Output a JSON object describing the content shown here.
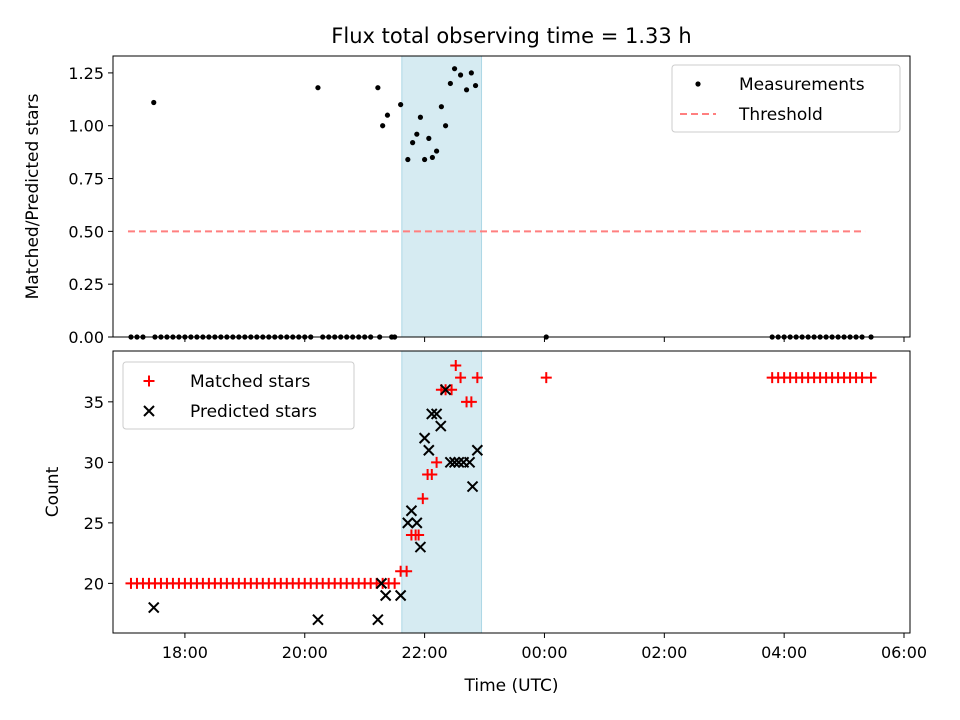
{
  "chart_data": {
    "title": "Flux total observing time = 1.33 h",
    "shared_x": {
      "label": "Time (UTC)",
      "unit": "hours since 17:00 UTC (values past 24 wrap to next day)",
      "range": [
        16.8,
        30.1
      ],
      "tick_values": [
        18,
        20,
        22,
        24,
        26,
        28,
        30
      ],
      "tick_labels": [
        "18:00",
        "20:00",
        "22:00",
        "00:00",
        "02:00",
        "04:00",
        "06:00"
      ]
    },
    "observing_window": {
      "start": 21.62,
      "end": 22.95,
      "color": "#add8e6"
    },
    "charts": [
      {
        "type": "scatter",
        "ylabel": "Matched/Predicted stars",
        "ylim": [
          0,
          1.33
        ],
        "y_ticks": [
          0.0,
          0.25,
          0.5,
          0.75,
          1.0,
          1.25
        ],
        "y_tick_labels": [
          "0.00",
          "0.25",
          "0.50",
          "0.75",
          "1.00",
          "1.25"
        ],
        "legend": {
          "position": "top-right"
        },
        "series": [
          {
            "name": "Measurements",
            "kind": "points",
            "color": "#000000",
            "points": [
              [
                17.1,
                0
              ],
              [
                17.2,
                0
              ],
              [
                17.3,
                0
              ],
              [
                17.48,
                1.11
              ],
              [
                17.5,
                0
              ],
              [
                17.6,
                0
              ],
              [
                17.7,
                0
              ],
              [
                17.8,
                0
              ],
              [
                17.9,
                0
              ],
              [
                18.0,
                0
              ],
              [
                18.1,
                0
              ],
              [
                18.2,
                0
              ],
              [
                18.3,
                0
              ],
              [
                18.4,
                0
              ],
              [
                18.5,
                0
              ],
              [
                18.6,
                0
              ],
              [
                18.7,
                0
              ],
              [
                18.8,
                0
              ],
              [
                18.9,
                0
              ],
              [
                19.0,
                0
              ],
              [
                19.1,
                0
              ],
              [
                19.2,
                0
              ],
              [
                19.3,
                0
              ],
              [
                19.4,
                0
              ],
              [
                19.5,
                0
              ],
              [
                19.6,
                0
              ],
              [
                19.7,
                0
              ],
              [
                19.8,
                0
              ],
              [
                19.9,
                0
              ],
              [
                20.0,
                0
              ],
              [
                20.1,
                0
              ],
              [
                20.22,
                1.18
              ],
              [
                20.3,
                0
              ],
              [
                20.4,
                0
              ],
              [
                20.5,
                0
              ],
              [
                20.6,
                0
              ],
              [
                20.7,
                0
              ],
              [
                20.8,
                0
              ],
              [
                20.9,
                0
              ],
              [
                21.0,
                0
              ],
              [
                21.1,
                0
              ],
              [
                21.22,
                1.18
              ],
              [
                21.25,
                0
              ],
              [
                21.3,
                1.0
              ],
              [
                21.38,
                1.05
              ],
              [
                21.45,
                0
              ],
              [
                21.5,
                0
              ],
              [
                21.6,
                1.1
              ],
              [
                21.72,
                0.84
              ],
              [
                21.8,
                0.92
              ],
              [
                21.87,
                0.96
              ],
              [
                21.93,
                1.04
              ],
              [
                22.0,
                0.84
              ],
              [
                22.07,
                0.94
              ],
              [
                22.13,
                0.85
              ],
              [
                22.2,
                0.88
              ],
              [
                22.28,
                1.09
              ],
              [
                22.35,
                1.0
              ],
              [
                22.43,
                1.2
              ],
              [
                22.5,
                1.27
              ],
              [
                22.6,
                1.24
              ],
              [
                22.7,
                1.17
              ],
              [
                22.78,
                1.25
              ],
              [
                22.85,
                1.19
              ],
              [
                24.03,
                0
              ],
              [
                27.8,
                0
              ],
              [
                27.9,
                0
              ],
              [
                28.0,
                0
              ],
              [
                28.1,
                0
              ],
              [
                28.2,
                0
              ],
              [
                28.3,
                0
              ],
              [
                28.4,
                0
              ],
              [
                28.5,
                0
              ],
              [
                28.6,
                0
              ],
              [
                28.7,
                0
              ],
              [
                28.8,
                0
              ],
              [
                28.9,
                0
              ],
              [
                29.0,
                0
              ],
              [
                29.1,
                0
              ],
              [
                29.2,
                0
              ],
              [
                29.3,
                0
              ],
              [
                29.45,
                0
              ]
            ]
          },
          {
            "name": "Threshold",
            "kind": "dashed-line",
            "color": "#ff7f7f",
            "points": [
              [
                17.05,
                0.5
              ],
              [
                29.35,
                0.5
              ]
            ]
          }
        ]
      },
      {
        "type": "scatter",
        "ylabel": "Count",
        "ylim": [
          15.9,
          39.2
        ],
        "y_ticks": [
          20,
          25,
          30,
          35
        ],
        "y_tick_labels": [
          "20",
          "25",
          "30",
          "35"
        ],
        "legend": {
          "position": "top-left"
        },
        "series": [
          {
            "name": "Matched stars",
            "kind": "plus",
            "color": "#ff0000",
            "points": [
              [
                17.1,
                20
              ],
              [
                17.2,
                20
              ],
              [
                17.3,
                20
              ],
              [
                17.4,
                20
              ],
              [
                17.5,
                20
              ],
              [
                17.6,
                20
              ],
              [
                17.7,
                20
              ],
              [
                17.8,
                20
              ],
              [
                17.9,
                20
              ],
              [
                18.0,
                20
              ],
              [
                18.1,
                20
              ],
              [
                18.2,
                20
              ],
              [
                18.3,
                20
              ],
              [
                18.4,
                20
              ],
              [
                18.5,
                20
              ],
              [
                18.6,
                20
              ],
              [
                18.7,
                20
              ],
              [
                18.8,
                20
              ],
              [
                18.9,
                20
              ],
              [
                19.0,
                20
              ],
              [
                19.1,
                20
              ],
              [
                19.2,
                20
              ],
              [
                19.3,
                20
              ],
              [
                19.4,
                20
              ],
              [
                19.5,
                20
              ],
              [
                19.6,
                20
              ],
              [
                19.7,
                20
              ],
              [
                19.8,
                20
              ],
              [
                19.9,
                20
              ],
              [
                20.0,
                20
              ],
              [
                20.1,
                20
              ],
              [
                20.2,
                20
              ],
              [
                20.3,
                20
              ],
              [
                20.4,
                20
              ],
              [
                20.5,
                20
              ],
              [
                20.6,
                20
              ],
              [
                20.7,
                20
              ],
              [
                20.8,
                20
              ],
              [
                20.9,
                20
              ],
              [
                21.0,
                20
              ],
              [
                21.1,
                20
              ],
              [
                21.2,
                20
              ],
              [
                21.3,
                20
              ],
              [
                21.4,
                20
              ],
              [
                21.5,
                20
              ],
              [
                21.6,
                21
              ],
              [
                21.7,
                21
              ],
              [
                21.78,
                24
              ],
              [
                21.85,
                24
              ],
              [
                21.9,
                24
              ],
              [
                21.97,
                27
              ],
              [
                22.05,
                29
              ],
              [
                22.12,
                29
              ],
              [
                22.2,
                30
              ],
              [
                22.28,
                36
              ],
              [
                22.35,
                36
              ],
              [
                22.45,
                36
              ],
              [
                22.52,
                38
              ],
              [
                22.6,
                37
              ],
              [
                22.7,
                35
              ],
              [
                22.78,
                35
              ],
              [
                22.88,
                37
              ],
              [
                24.03,
                37
              ],
              [
                27.8,
                37
              ],
              [
                27.9,
                37
              ],
              [
                28.0,
                37
              ],
              [
                28.1,
                37
              ],
              [
                28.2,
                37
              ],
              [
                28.3,
                37
              ],
              [
                28.4,
                37
              ],
              [
                28.5,
                37
              ],
              [
                28.6,
                37
              ],
              [
                28.7,
                37
              ],
              [
                28.8,
                37
              ],
              [
                28.9,
                37
              ],
              [
                29.0,
                37
              ],
              [
                29.1,
                37
              ],
              [
                29.2,
                37
              ],
              [
                29.3,
                37
              ],
              [
                29.45,
                37
              ]
            ]
          },
          {
            "name": "Predicted stars",
            "kind": "x",
            "color": "#000000",
            "points": [
              [
                17.48,
                18
              ],
              [
                20.22,
                17
              ],
              [
                21.22,
                17
              ],
              [
                21.28,
                20
              ],
              [
                21.35,
                19
              ],
              [
                21.6,
                19
              ],
              [
                21.72,
                25
              ],
              [
                21.78,
                26
              ],
              [
                21.87,
                25
              ],
              [
                21.93,
                23
              ],
              [
                22.0,
                32
              ],
              [
                22.07,
                31
              ],
              [
                22.12,
                34
              ],
              [
                22.2,
                34
              ],
              [
                22.27,
                33
              ],
              [
                22.35,
                36
              ],
              [
                22.43,
                30
              ],
              [
                22.5,
                30
              ],
              [
                22.57,
                30
              ],
              [
                22.65,
                30
              ],
              [
                22.75,
                30
              ],
              [
                22.8,
                28
              ],
              [
                22.88,
                31
              ]
            ]
          }
        ]
      }
    ]
  }
}
